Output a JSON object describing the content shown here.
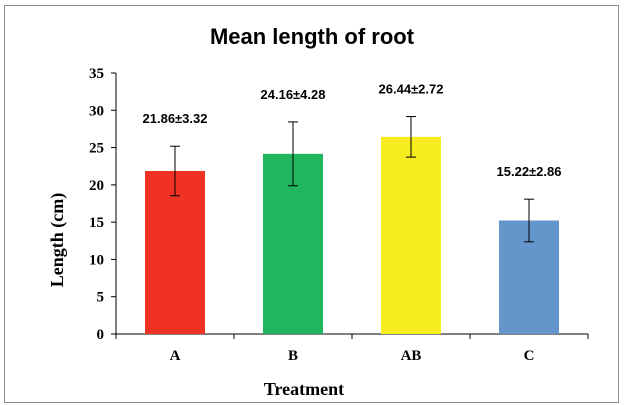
{
  "chart_data": {
    "type": "bar",
    "title": "Mean length of root",
    "xlabel": "Treatment",
    "ylabel": "Length (cm)",
    "categories": [
      "A",
      "B",
      "AB",
      "C"
    ],
    "values": [
      21.86,
      24.16,
      26.44,
      15.22
    ],
    "errors": [
      3.32,
      4.28,
      2.72,
      2.86
    ],
    "data_labels": [
      "21.86±3.32",
      "24.16±4.28",
      "26.44±2.72",
      "15.22±2.86"
    ],
    "colors": [
      "#ef3224",
      "#21b55d",
      "#f7ec20",
      "#6495cb"
    ],
    "ylim": [
      0,
      35
    ],
    "yticks": [
      "0",
      "5",
      "10",
      "15",
      "20",
      "25",
      "30",
      "35"
    ],
    "grid": false,
    "legend": "none"
  }
}
